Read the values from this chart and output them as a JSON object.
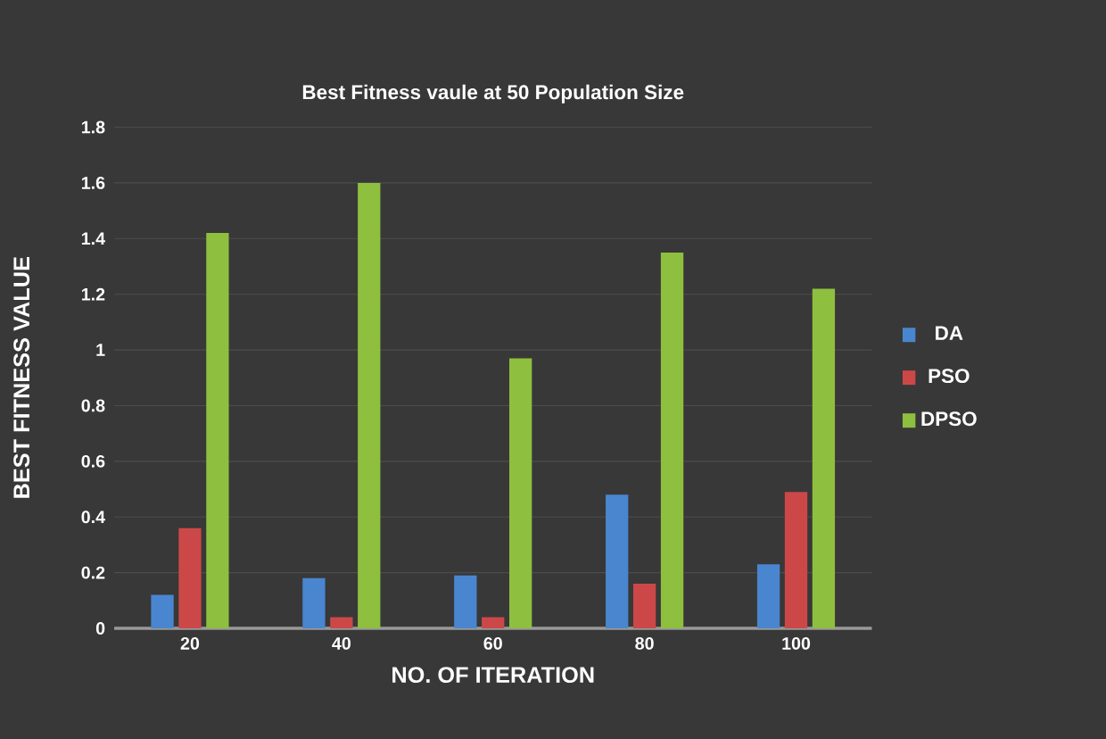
{
  "chart_data": {
    "type": "bar",
    "title": "Best Fitness vaule at 50 Population Size",
    "xlabel": "NO. OF ITERATION",
    "ylabel": "BEST FITNESS VALUE",
    "categories": [
      "20",
      "40",
      "60",
      "80",
      "100"
    ],
    "series": [
      {
        "name": "DA",
        "color": "#4a86cf",
        "values": [
          0.12,
          0.18,
          0.19,
          0.48,
          0.23
        ]
      },
      {
        "name": "PSO",
        "color": "#cc4848",
        "values": [
          0.36,
          0.04,
          0.04,
          0.16,
          0.49
        ]
      },
      {
        "name": "DPSO",
        "color": "#8fbf3f",
        "values": [
          1.42,
          1.6,
          0.97,
          1.35,
          1.22
        ]
      }
    ],
    "ylim": [
      0,
      1.8
    ],
    "yticks": [
      0,
      0.2,
      0.4,
      0.6,
      0.8,
      1,
      1.2,
      1.4,
      1.6,
      1.8
    ],
    "grid": "y",
    "legend": "right"
  }
}
